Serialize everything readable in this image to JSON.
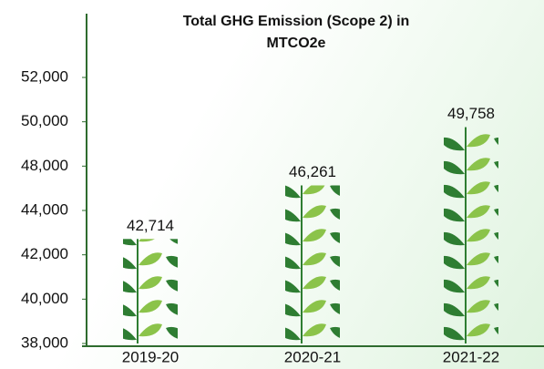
{
  "chart_data": {
    "type": "bar",
    "title": "Total GHG Emission (Scope 2) in MTCO2e",
    "categories": [
      "2019-20",
      "2020-21",
      "2021-22"
    ],
    "values": [
      42714,
      46261,
      49758
    ],
    "value_labels": [
      "42,714",
      "46,261",
      "49,758"
    ],
    "color": "#2e7d32",
    "ylim": [
      38000,
      52000
    ],
    "yticks": [
      {
        "value": 38000,
        "label": "38,000"
      },
      {
        "value": 40000,
        "label": "40,000"
      },
      {
        "value": 42000,
        "label": "42,000"
      },
      {
        "value": 44000,
        "label": "44,000"
      },
      {
        "value": 48000,
        "label": "48,000"
      },
      {
        "value": 50000,
        "label": "50,000"
      },
      {
        "value": 52000,
        "label": "52,000"
      }
    ]
  }
}
